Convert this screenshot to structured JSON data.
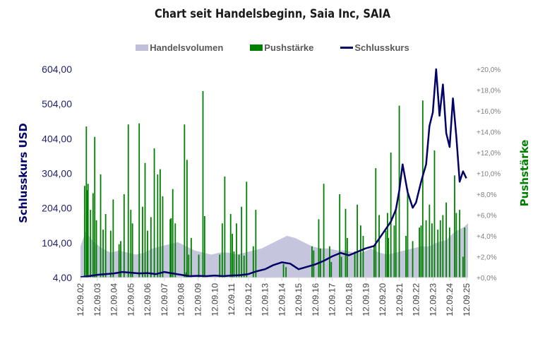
{
  "chart_data": {
    "type": "line",
    "title": "Chart seit Handelsbeginn, Saia Inc, SAIA",
    "legend": {
      "position": "top",
      "entries": [
        {
          "label": "Handelsvolumen",
          "kind": "area",
          "color": "#bfbfd9"
        },
        {
          "label": "Pushstärke",
          "kind": "bar",
          "color": "#008000"
        },
        {
          "label": "Schlusskurs",
          "kind": "line",
          "color": "#000066"
        }
      ]
    },
    "ylabel_left": "Schlusskurs USD",
    "ylabel_right": "Pushstärke",
    "ylim_left": [
      4,
      604
    ],
    "ylim_right": [
      0,
      20
    ],
    "yticks_left": [
      "4,00",
      "104,00",
      "204,00",
      "304,00",
      "404,00",
      "504,00",
      "604,00"
    ],
    "yticks_right": [
      "+0,0%",
      "+2,0%",
      "+4,0%",
      "+6,0%",
      "+8,0%",
      "+10,0%",
      "+12,0%",
      "+14,0%",
      "+16,0%",
      "+18,0%",
      "+20,0%"
    ],
    "xticks": [
      "12.09.02",
      "12.09.03",
      "12.09.04",
      "12.09.05",
      "12.09.06",
      "12.09.07",
      "12.09.08",
      "12.09.09",
      "12.09.10",
      "12.09.11",
      "12.09.12",
      "12.09.13",
      "12.09.14",
      "12.09.15",
      "12.09.16",
      "12.09.17",
      "12.09.18",
      "12.09.19",
      "12.09.20",
      "12.09.21",
      "12.09.22",
      "12.09.23",
      "12.09.24",
      "12.09.25"
    ],
    "xrange_years": [
      2002.7,
      2025.8
    ],
    "series": [
      {
        "name": "Schlusskurs",
        "type": "line",
        "color": "#000066",
        "x": [
          2002.7,
          2003.2,
          2003.7,
          2004.2,
          2004.7,
          2005.2,
          2005.7,
          2006.2,
          2006.7,
          2007.2,
          2007.7,
          2008.2,
          2008.7,
          2009.2,
          2009.7,
          2010.2,
          2010.7,
          2011.2,
          2011.7,
          2012.2,
          2012.7,
          2013.2,
          2013.7,
          2014.2,
          2014.7,
          2015.2,
          2015.7,
          2016.2,
          2016.7,
          2017.2,
          2017.7,
          2018.2,
          2018.7,
          2019.2,
          2019.7,
          2020.2,
          2020.7,
          2021.2,
          2021.5,
          2021.7,
          2021.9,
          2022.2,
          2022.5,
          2022.7,
          2023.0,
          2023.3,
          2023.5,
          2023.7,
          2023.9,
          2024.1,
          2024.3,
          2024.5,
          2024.7,
          2024.9,
          2025.1,
          2025.3,
          2025.5,
          2025.7
        ],
        "values": [
          5,
          8,
          12,
          14,
          16,
          20,
          18,
          16,
          17,
          14,
          20,
          16,
          12,
          8,
          9,
          8,
          10,
          8,
          10,
          11,
          14,
          22,
          28,
          40,
          48,
          44,
          28,
          35,
          42,
          52,
          65,
          75,
          68,
          78,
          88,
          95,
          130,
          165,
          200,
          255,
          330,
          250,
          205,
          220,
          280,
          330,
          440,
          480,
          604,
          470,
          560,
          420,
          380,
          520,
          410,
          280,
          310,
          290
        ]
      },
      {
        "name": "Pushstärke",
        "type": "bar",
        "color": "#008000",
        "unit": "percent",
        "x": [
          2002.95,
          2003.05,
          2003.1,
          2003.15,
          2003.3,
          2003.45,
          2003.55,
          2003.65,
          2003.9,
          2004.05,
          2004.2,
          2004.5,
          2004.65,
          2005.0,
          2005.1,
          2005.3,
          2005.55,
          2005.7,
          2005.8,
          2006.2,
          2006.4,
          2006.55,
          2006.7,
          2006.9,
          2007.1,
          2007.3,
          2007.45,
          2007.6,
          2008.05,
          2008.1,
          2008.2,
          2008.35,
          2008.9,
          2009.0,
          2009.05,
          2009.15,
          2009.3,
          2009.75,
          2010.0,
          2010.1,
          2011.0,
          2011.15,
          2011.3,
          2011.65,
          2011.75,
          2011.85,
          2012.0,
          2012.15,
          2012.3,
          2012.45,
          2012.6,
          2013.0,
          2013.15,
          2014.8,
          2014.95,
          2016.5,
          2016.6,
          2016.9,
          2017.0,
          2017.2,
          2017.55,
          2017.65,
          2018.15,
          2018.25,
          2018.5,
          2018.6,
          2019.05,
          2019.2,
          2019.4,
          2019.55,
          2020.2,
          2020.3,
          2020.5,
          2020.9,
          2021.0,
          2021.05,
          2021.2,
          2021.4,
          2021.5,
          2021.7,
          2022.1,
          2022.2,
          2022.5,
          2022.9,
          2023.0,
          2023.1,
          2023.3,
          2023.5,
          2023.65,
          2023.8,
          2024.0,
          2024.15,
          2024.3,
          2024.5,
          2024.7,
          2025.0,
          2025.1,
          2025.3,
          2025.5,
          2025.6
        ],
        "values": [
          8.8,
          14.5,
          8.4,
          9.0,
          6.5,
          8.1,
          13.5,
          5.5,
          9.9,
          4.6,
          6.1,
          4.5,
          7.5,
          3.2,
          3.5,
          8.0,
          14.7,
          6.5,
          5.2,
          14.8,
          6.8,
          11.0,
          4.5,
          5.8,
          12.4,
          9.9,
          10.4,
          7.8,
          5.6,
          5.7,
          8.5,
          5.2,
          14.7,
          0.5,
          11.3,
          2.2,
          3.8,
          2.2,
          17.9,
          5.9,
          2.2,
          5.2,
          9.7,
          6.1,
          4.2,
          2.5,
          5.2,
          2.2,
          6.8,
          2.1,
          9.2,
          3.0,
          6.5,
          1.3,
          1.0,
          3.0,
          2.6,
          5.6,
          2.8,
          9.0,
          3.0,
          1.5,
          8.0,
          2.0,
          6.6,
          3.8,
          2.5,
          7.0,
          5.0,
          4.0,
          3.0,
          10.5,
          6.0,
          4.5,
          6.2,
          3.8,
          12.0,
          5.0,
          6.5,
          16.5,
          4.0,
          8.5,
          3.5,
          4.8,
          5.0,
          17.0,
          5.5,
          7.0,
          5.2,
          12.2,
          4.6,
          5.5,
          6.0,
          7.2,
          4.8,
          9.8,
          6.2,
          6.5,
          2.0,
          4.8
        ]
      },
      {
        "name": "Handelsvolumen",
        "type": "area",
        "color": "#bfbfd9",
        "unit": "relative (no axis shown)",
        "x": [
          2002.7,
          2003.0,
          2003.5,
          2004.0,
          2004.5,
          2005.0,
          2005.5,
          2006.0,
          2006.5,
          2007.0,
          2007.5,
          2008.0,
          2008.5,
          2009.0,
          2009.5,
          2010.0,
          2010.5,
          2011.0,
          2011.5,
          2012.0,
          2012.5,
          2013.0,
          2013.5,
          2014.0,
          2014.5,
          2015.0,
          2015.5,
          2016.0,
          2016.5,
          2017.0,
          2017.5,
          2018.0,
          2018.5,
          2019.0,
          2019.5,
          2020.0,
          2020.5,
          2021.0,
          2021.5,
          2022.0,
          2022.5,
          2023.0,
          2023.5,
          2024.0,
          2024.5,
          2025.0,
          2025.5,
          2025.8
        ],
        "values": [
          0.15,
          0.22,
          0.17,
          0.14,
          0.12,
          0.13,
          0.12,
          0.11,
          0.12,
          0.14,
          0.15,
          0.16,
          0.17,
          0.15,
          0.13,
          0.12,
          0.11,
          0.12,
          0.12,
          0.11,
          0.12,
          0.13,
          0.14,
          0.16,
          0.18,
          0.2,
          0.19,
          0.17,
          0.15,
          0.14,
          0.14,
          0.13,
          0.13,
          0.12,
          0.12,
          0.14,
          0.12,
          0.11,
          0.12,
          0.13,
          0.14,
          0.15,
          0.15,
          0.17,
          0.18,
          0.22,
          0.24,
          0.26
        ]
      }
    ]
  }
}
